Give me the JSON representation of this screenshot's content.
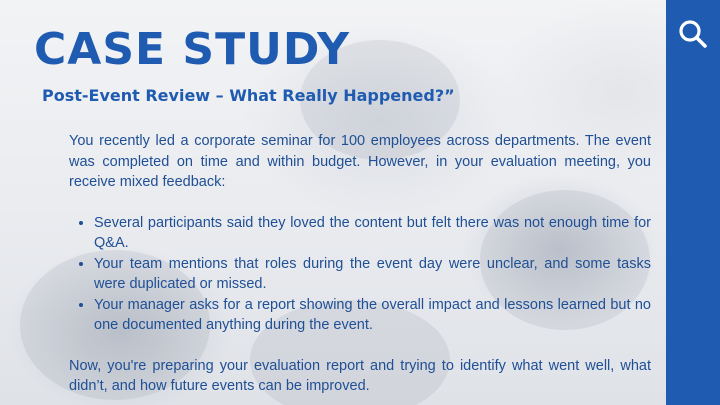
{
  "slide": {
    "title": "CASE STUDY",
    "subtitle": "Post-Event Review – What Really Happened?”",
    "intro": "You recently led a corporate seminar for 100 employees across departments. The event was completed on time and within budget. However, in your evaluation meeting, you receive mixed feedback:",
    "bullets": [
      "Several participants said they loved the content but felt there was not enough time for Q&A.",
      "Your team mentions that roles during the event day were unclear, and some tasks were duplicated or missed.",
      "Your manager asks for a report showing the overall impact and lessons learned but no one documented anything during the event."
    ],
    "closing": "Now, you're preparing your evaluation report and trying to identify what went well, what didn’t, and how future events can be improved."
  },
  "colors": {
    "accent": "#1f5bb0",
    "text": "#1f4f95"
  },
  "icons": {
    "search": "search-icon"
  }
}
